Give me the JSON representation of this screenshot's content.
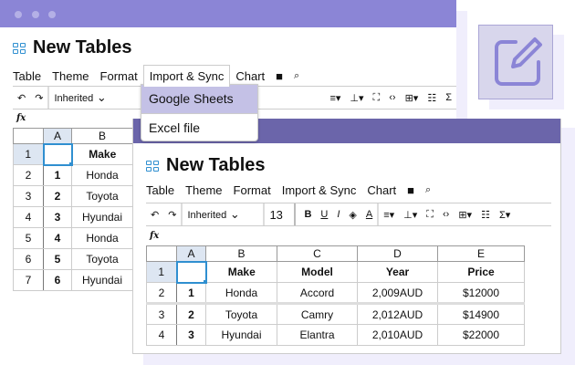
{
  "colors": {
    "back_bar": "#8b85d6",
    "front_bar": "#6b65aa",
    "accent": "#2f8fd0",
    "edit_box": "#d8d6ec"
  },
  "app": {
    "title": "New Tables",
    "menu": [
      "Table",
      "Theme",
      "Format",
      "Import & Sync",
      "Chart"
    ],
    "toolbar": {
      "font": "Inherited",
      "size": "13",
      "bold": "B",
      "underline": "U",
      "italic": "I",
      "text_color": "A",
      "sum": "Σ"
    },
    "fx": "fx"
  },
  "dropdown": {
    "items": [
      "Google Sheets",
      "Excel file"
    ],
    "highlighted": "Google Sheets"
  },
  "back_grid": {
    "cols": [
      "A",
      "B"
    ],
    "rows": [
      [
        "1",
        "",
        "Make"
      ],
      [
        "2",
        "1",
        "Honda"
      ],
      [
        "3",
        "2",
        "Toyota"
      ],
      [
        "4",
        "3",
        "Hyundai"
      ],
      [
        "5",
        "4",
        "Honda"
      ],
      [
        "6",
        "5",
        "Toyota"
      ],
      [
        "7",
        "6",
        "Hyundai"
      ]
    ]
  },
  "front_grid": {
    "cols": [
      "A",
      "B",
      "C",
      "D",
      "E"
    ],
    "rows": [
      [
        "1",
        "",
        "Make",
        "Model",
        "Year",
        "Price"
      ],
      [
        "2",
        "1",
        "Honda",
        "Accord",
        "2,009AUD",
        "$12000"
      ],
      [
        "3",
        "2",
        "Toyota",
        "Camry",
        "2,012AUD",
        "$14900"
      ],
      [
        "4",
        "3",
        "Hyundai",
        "Elantra",
        "2,010AUD",
        "$22000"
      ]
    ]
  },
  "icons": [
    "grid-icon",
    "save-icon",
    "search-icon",
    "undo-icon",
    "redo-icon",
    "edit-icon"
  ]
}
